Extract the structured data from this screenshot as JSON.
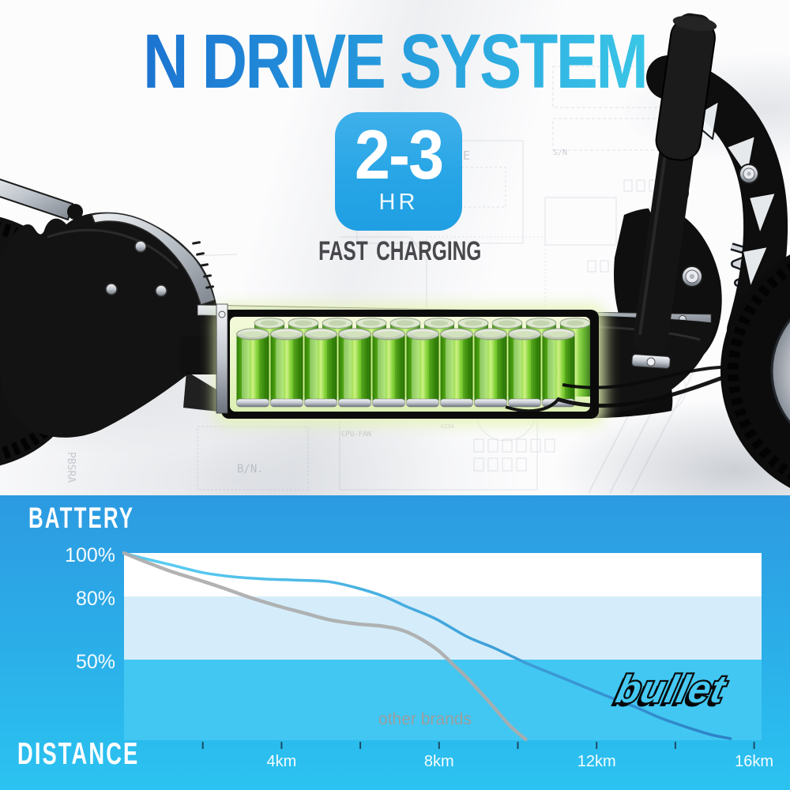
{
  "title": "N DRIVE SYSTEM",
  "title_gradient": [
    "#1C74D1",
    "#3AC6E7"
  ],
  "badge": {
    "hours": "2-3",
    "unit": "HR",
    "caption": "FAST CHARGING",
    "bg_top": "#3FB0EA",
    "bg_bottom": "#1F9FE3"
  },
  "battery": {
    "visible_cells_front": 10,
    "visible_cells_back": 10
  },
  "background_texts": [
    "CPU-FAN",
    "PBSRA",
    "B/N.",
    "W485",
    "S/N",
    "CE",
    "K234"
  ],
  "chart_data": {
    "type": "line",
    "ylabel": "BATTERY",
    "xlabel": "DISTANCE",
    "x_unit": "km",
    "y_unit": "%",
    "xlim": [
      0,
      16.2
    ],
    "ylim": [
      0,
      100
    ],
    "grid": false,
    "legend": "none",
    "background_gradient": [
      "#2C9AE1",
      "#2BC3F1"
    ],
    "bands": [
      {
        "from": 100,
        "to": 80,
        "color": "#FFFFFF"
      },
      {
        "from": 80,
        "to": 50,
        "color": "#D5EDFA"
      },
      {
        "from": 50,
        "to": 0,
        "color": "#41C7F2"
      }
    ],
    "x_axis": {
      "ticks_km": [
        2,
        4,
        6,
        8,
        10,
        12,
        14,
        16
      ],
      "labels": [
        {
          "text": "4km",
          "km": 4
        },
        {
          "text": "8km",
          "km": 8
        },
        {
          "text": "12km",
          "km": 12
        },
        {
          "text": "16km",
          "km": 16
        }
      ]
    },
    "y_axis": {
      "labels": [
        {
          "text": "100%",
          "pct": 100
        },
        {
          "text": "80%",
          "pct": 80
        },
        {
          "text": "50%",
          "pct": 50
        }
      ]
    },
    "series": [
      {
        "name": "bullet",
        "stroke_gradient": [
          "#5BD1F4",
          "#2B7EC5"
        ],
        "x_km": [
          0,
          0.4,
          1.2,
          2,
          2.8,
          3.6,
          4.4,
          5.2,
          5.9,
          6.6,
          7.2,
          7.9,
          8.7,
          9.4,
          10.2,
          10.9,
          11.6,
          12.3,
          13,
          13.6,
          14.3,
          14.9,
          15.4
        ],
        "y_pct": [
          100,
          98,
          94.5,
          91,
          89,
          88,
          87.5,
          86.8,
          84,
          80,
          75,
          69.5,
          61,
          55.5,
          48,
          41,
          34,
          27,
          20.5,
          14,
          8,
          3.5,
          1
        ]
      },
      {
        "name": "other brands",
        "color": "#ABABAB",
        "x_km": [
          0,
          0.4,
          1.2,
          2,
          2.5,
          3.2,
          3.9,
          4.6,
          5.2,
          5.9,
          6.6,
          7.2,
          7.9,
          8.4,
          8.7,
          9.3,
          9.8,
          10.2
        ],
        "y_pct": [
          100,
          97,
          91.5,
          87,
          84,
          79.5,
          75.5,
          72,
          69,
          67,
          65.8,
          63,
          55.5,
          46,
          39,
          23,
          9,
          0.5
        ]
      }
    ],
    "annotation": {
      "text": "other brands",
      "color": "#9D9D9D"
    },
    "logo_text": "bullet"
  }
}
